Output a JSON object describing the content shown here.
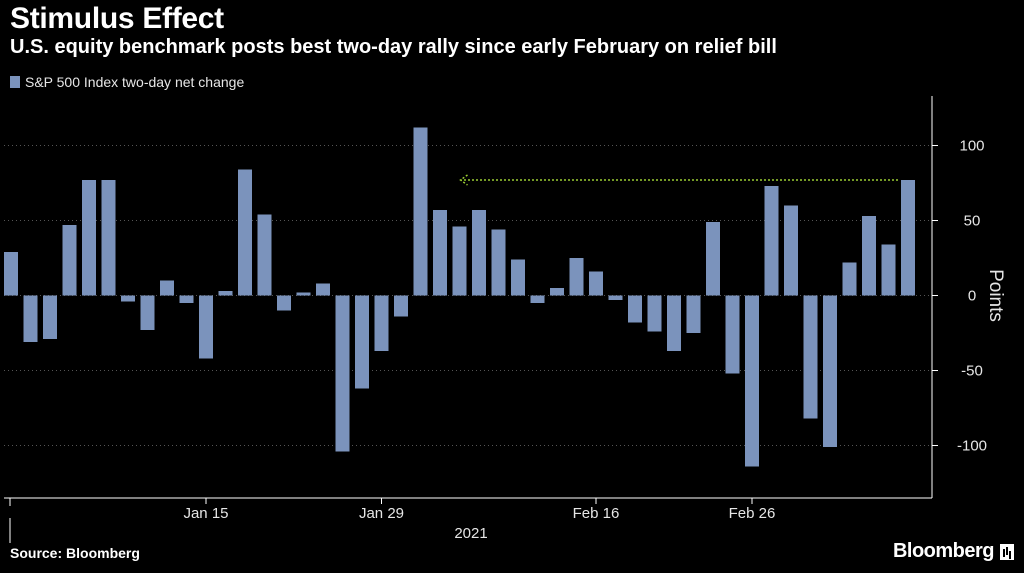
{
  "header": {
    "title": "Stimulus Effect",
    "subtitle": "U.S. equity benchmark posts best two-day rally since early February on relief bill"
  },
  "footer": {
    "source": "Source: Bloomberg",
    "brand": "Bloomberg"
  },
  "colors": {
    "bar": "#7b93bc",
    "annotation_arrow": "#9acd32",
    "background": "#000000",
    "gridline": "#555555"
  },
  "chart_data": {
    "type": "bar",
    "legend": "S&P 500 Index two-day net change",
    "legend_position": "top-left",
    "ylabel": "Points",
    "ylim": [
      -135,
      133
    ],
    "yticks": [
      100,
      50,
      0,
      -50,
      -100
    ],
    "xtick_labels": [
      {
        "label": "Jan 15",
        "index": 10
      },
      {
        "label": "Jan 29",
        "index": 19
      },
      {
        "label": "Feb 16",
        "index": 30
      },
      {
        "label": "Feb 26",
        "index": 38
      }
    ],
    "year_label": "2021",
    "grid": "horizontal-dotted",
    "values": [
      29,
      -31,
      -29,
      47,
      77,
      77,
      -4,
      -23,
      10,
      -5,
      -42,
      3,
      84,
      54,
      -10,
      2,
      8,
      -104,
      -62,
      -37,
      -14,
      112,
      57,
      46,
      57,
      44,
      24,
      -5,
      5,
      25,
      16,
      -3,
      -18,
      -24,
      -37,
      -25,
      49,
      -52,
      -114,
      73,
      60,
      -82,
      -101,
      22,
      53,
      34,
      77
    ],
    "annotation": {
      "type": "arrow",
      "from_index": 46,
      "to_index": 23,
      "value": 77
    }
  }
}
